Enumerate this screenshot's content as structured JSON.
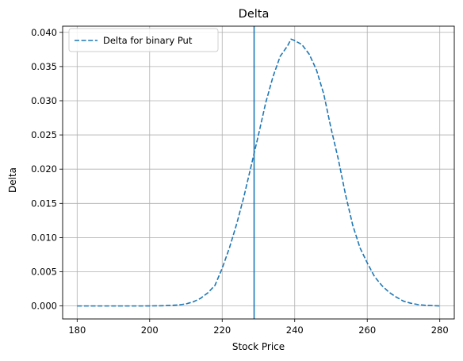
{
  "chart_data": {
    "type": "line",
    "title": "Delta",
    "xlabel": "Stock Price",
    "ylabel": "Delta",
    "xlim": [
      176,
      284
    ],
    "ylim": [
      -0.0019,
      0.0409
    ],
    "xticks": [
      180,
      200,
      220,
      240,
      260,
      280
    ],
    "xtick_labels": [
      "180",
      "200",
      "220",
      "240",
      "260",
      "280"
    ],
    "yticks": [
      0.0,
      0.005,
      0.01,
      0.015,
      0.02,
      0.025,
      0.03,
      0.035,
      0.04
    ],
    "ytick_labels": [
      "0.000",
      "0.005",
      "0.010",
      "0.015",
      "0.020",
      "0.025",
      "0.030",
      "0.035",
      "0.040"
    ],
    "grid": true,
    "legend": "top-left",
    "series": [
      {
        "name": "Delta for binary Put",
        "color": "#1f77b4",
        "linestyle": "dashed",
        "x": [
          180,
          182,
          184,
          186,
          188,
          190,
          192,
          194,
          196,
          198,
          200,
          202,
          204,
          206,
          208,
          210,
          212,
          214,
          216,
          218,
          220,
          222,
          224,
          226,
          228,
          230,
          232,
          234,
          236,
          238,
          239,
          240,
          242,
          244,
          246,
          248,
          250,
          252,
          254,
          256,
          258,
          260,
          262,
          264,
          266,
          268,
          270,
          272,
          274,
          276,
          278,
          280
        ],
        "y": [
          0.0,
          0.0,
          0.0,
          0.0,
          0.0,
          0.0,
          0.0,
          0.0,
          0.0,
          0.0,
          1e-05,
          2e-05,
          4e-05,
          8e-05,
          0.00015,
          0.0003,
          0.0006,
          0.0011,
          0.0019,
          0.003,
          0.0055,
          0.0085,
          0.012,
          0.016,
          0.0205,
          0.025,
          0.0297,
          0.0335,
          0.0365,
          0.038,
          0.039,
          0.0388,
          0.0382,
          0.0368,
          0.0345,
          0.031,
          0.026,
          0.0215,
          0.0163,
          0.0118,
          0.0085,
          0.0063,
          0.0043,
          0.003,
          0.002,
          0.0013,
          0.0007,
          0.0004,
          0.0002,
          0.0001,
          5e-05,
          0.0
        ]
      }
    ],
    "vline": {
      "x": 228.8,
      "color": "#1f77b4"
    }
  }
}
